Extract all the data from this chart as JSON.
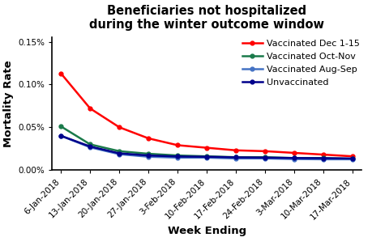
{
  "title": "Beneficiaries not hospitalized\nduring the winter outcome window",
  "xlabel": "Week Ending",
  "ylabel": "Mortality Rate",
  "x_labels": [
    "6-Jan-2018",
    "13-Jan-2018",
    "20-Jan-2018",
    "27-Jan-2018",
    "3-Feb-2018",
    "10-Feb-2018",
    "17-Feb-2018",
    "24-Feb-2018",
    "3-Mar-2018",
    "10-Mar-2018",
    "17-Mar-2018"
  ],
  "series": [
    {
      "label": "Vaccinated Dec 1-15",
      "color": "#FF0000",
      "values": [
        0.00113,
        0.00072,
        0.0005,
        0.00037,
        0.00029,
        0.00026,
        0.00023,
        0.00022,
        0.0002,
        0.00018,
        0.00016
      ]
    },
    {
      "label": "Vaccinated Oct-Nov",
      "color": "#1a7a4a",
      "values": [
        0.00051,
        0.0003,
        0.00022,
        0.00019,
        0.00017,
        0.00016,
        0.00015,
        0.00015,
        0.00014,
        0.00014,
        0.00013
      ]
    },
    {
      "label": "Vaccinated Aug-Sep",
      "color": "#4472C4",
      "values": [
        0.0004,
        0.000265,
        0.000185,
        0.000155,
        0.000145,
        0.000145,
        0.000135,
        0.000135,
        0.000128,
        0.000125,
        0.000125
      ]
    },
    {
      "label": "Unvaccinated",
      "color": "#00008B",
      "values": [
        0.0004,
        0.000275,
        0.000195,
        0.00017,
        0.000158,
        0.000155,
        0.000148,
        0.000145,
        0.00014,
        0.000138,
        0.000135
      ]
    }
  ],
  "ylim": [
    0.0,
    0.00155
  ],
  "yticks": [
    0.0,
    0.0005,
    0.001,
    0.0015
  ],
  "ytick_labels": [
    "0.00%",
    "0.05%",
    "0.10%",
    "0.15%"
  ],
  "background_color": "#ffffff",
  "title_fontsize": 10.5,
  "label_fontsize": 9.5,
  "legend_fontsize": 8.0,
  "tick_fontsize": 7.5
}
